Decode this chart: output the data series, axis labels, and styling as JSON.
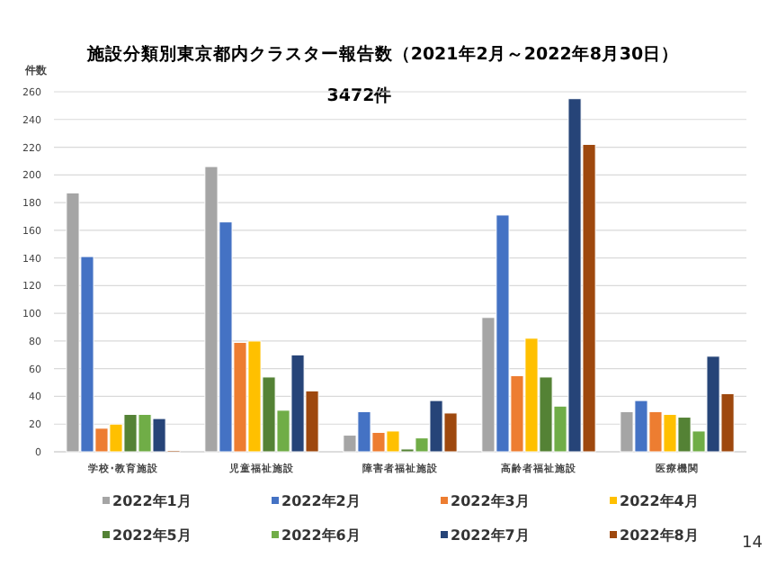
{
  "chart_data": {
    "type": "bar",
    "title": "施設分類別東京都内クラスター報告数（2021年2月～2022年8月30日）",
    "subtitle": "3472件",
    "ylabel": "件数",
    "categories": [
      "学校･教育施設",
      "児童福祉施設",
      "障害者福祉施設",
      "高齢者福祉施設",
      "医療機関"
    ],
    "series": [
      {
        "name": "2022年1月",
        "color": "#a5a5a5",
        "values": [
          187,
          206,
          12,
          97,
          29
        ]
      },
      {
        "name": "2022年2月",
        "color": "#4472c4",
        "values": [
          141,
          166,
          29,
          171,
          37
        ]
      },
      {
        "name": "2022年3月",
        "color": "#ed7d31",
        "values": [
          17,
          79,
          14,
          55,
          29
        ]
      },
      {
        "name": "2022年4月",
        "color": "#ffc000",
        "values": [
          20,
          80,
          15,
          82,
          27
        ]
      },
      {
        "name": "2022年5月",
        "color": "#548235",
        "values": [
          27,
          54,
          2,
          54,
          25
        ]
      },
      {
        "name": "2022年6月",
        "color": "#70ad47",
        "values": [
          27,
          30,
          10,
          33,
          15
        ]
      },
      {
        "name": "2022年7月",
        "color": "#264478",
        "values": [
          24,
          70,
          37,
          255,
          69
        ]
      },
      {
        "name": "2022年8月",
        "color": "#9e480e",
        "values": [
          1,
          44,
          28,
          222,
          42
        ]
      }
    ],
    "ylim": [
      0,
      260
    ],
    "yticks": [
      0,
      20,
      40,
      60,
      80,
      100,
      120,
      140,
      160,
      180,
      200,
      220,
      240,
      260
    ],
    "grid": "y",
    "legend": "bottom",
    "annotations": [
      "14"
    ]
  }
}
